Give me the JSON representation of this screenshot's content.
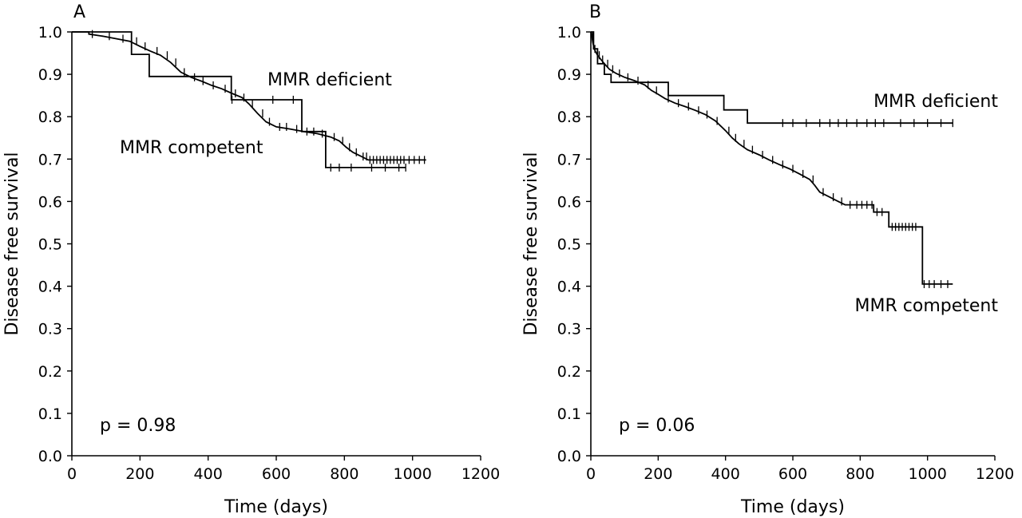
{
  "chart_data": [
    {
      "type": "line",
      "panel_label": "A",
      "xlabel": "Time (days)",
      "ylabel": "Disease free survival",
      "xlim": [
        0,
        1200
      ],
      "ylim": [
        0,
        1.0
      ],
      "xticks": [
        0,
        200,
        400,
        600,
        800,
        1000,
        1200
      ],
      "yticks": [
        0.0,
        0.1,
        0.2,
        0.3,
        0.4,
        0.5,
        0.6,
        0.7,
        0.8,
        0.9,
        1.0
      ],
      "ytick_labels": [
        "0.0",
        "0.1",
        "0.2",
        "0.3",
        "0.4",
        "0.5",
        "0.6",
        "0.7",
        "0.8",
        "0.9",
        "1.0"
      ],
      "grid": false,
      "annotation": "p = 0.98",
      "series": [
        {
          "name": "MMR deficient",
          "step": [
            [
              0,
              1.0
            ],
            [
              175,
              1.0
            ],
            [
              175,
              0.947
            ],
            [
              227,
              0.947
            ],
            [
              227,
              0.895
            ],
            [
              468,
              0.895
            ],
            [
              468,
              0.84
            ],
            [
              675,
              0.84
            ],
            [
              675,
              0.765
            ],
            [
              745,
              0.765
            ],
            [
              745,
              0.68
            ],
            [
              980,
              0.68
            ]
          ],
          "censored_x": [
            470,
            590,
            650,
            760,
            785,
            820,
            880,
            920,
            960,
            980
          ]
        },
        {
          "name": "MMR competent",
          "step": [
            [
              0,
              1.0
            ],
            [
              50,
              1.0
            ],
            [
              50,
              0.995
            ],
            [
              90,
              0.99
            ],
            [
              130,
              0.984
            ],
            [
              170,
              0.978
            ],
            [
              200,
              0.966
            ],
            [
              230,
              0.955
            ],
            [
              260,
              0.945
            ],
            [
              290,
              0.928
            ],
            [
              320,
              0.905
            ],
            [
              350,
              0.893
            ],
            [
              380,
              0.884
            ],
            [
              410,
              0.874
            ],
            [
              440,
              0.866
            ],
            [
              470,
              0.855
            ],
            [
              500,
              0.845
            ],
            [
              520,
              0.83
            ],
            [
              545,
              0.808
            ],
            [
              570,
              0.788
            ],
            [
              600,
              0.776
            ],
            [
              640,
              0.771
            ],
            [
              680,
              0.765
            ],
            [
              720,
              0.76
            ],
            [
              760,
              0.752
            ],
            [
              785,
              0.743
            ],
            [
              805,
              0.728
            ],
            [
              825,
              0.716
            ],
            [
              850,
              0.706
            ],
            [
              870,
              0.698
            ],
            [
              1040,
              0.698
            ]
          ],
          "censored_x": [
            60,
            110,
            150,
            190,
            215,
            250,
            280,
            305,
            330,
            360,
            385,
            415,
            450,
            480,
            505,
            530,
            560,
            580,
            610,
            630,
            660,
            690,
            710,
            735,
            770,
            795,
            815,
            835,
            855,
            865,
            875,
            885,
            895,
            905,
            915,
            925,
            935,
            945,
            955,
            965,
            975,
            990,
            1005,
            1020,
            1035
          ]
        }
      ]
    },
    {
      "type": "line",
      "panel_label": "B",
      "xlabel": "Time (days)",
      "ylabel": "Disease free survival",
      "xlim": [
        0,
        1200
      ],
      "ylim": [
        0,
        1.0
      ],
      "xticks": [
        0,
        200,
        400,
        600,
        800,
        1000,
        1200
      ],
      "yticks": [
        0.0,
        0.1,
        0.2,
        0.3,
        0.4,
        0.5,
        0.6,
        0.7,
        0.8,
        0.9,
        1.0
      ],
      "ytick_labels": [
        "0.0",
        "0.1",
        "0.2",
        "0.3",
        "0.4",
        "0.5",
        "0.6",
        "0.7",
        "0.8",
        "0.9",
        "1.0"
      ],
      "grid": false,
      "annotation": "p = 0.06",
      "series": [
        {
          "name": "MMR deficient",
          "step": [
            [
              0,
              1.0
            ],
            [
              8,
              1.0
            ],
            [
              8,
              0.96
            ],
            [
              20,
              0.96
            ],
            [
              20,
              0.925
            ],
            [
              40,
              0.925
            ],
            [
              40,
              0.9
            ],
            [
              60,
              0.9
            ],
            [
              60,
              0.881
            ],
            [
              230,
              0.881
            ],
            [
              230,
              0.85
            ],
            [
              395,
              0.85
            ],
            [
              395,
              0.816
            ],
            [
              465,
              0.816
            ],
            [
              465,
              0.785
            ],
            [
              1075,
              0.785
            ]
          ],
          "censored_x": [
            570,
            600,
            640,
            680,
            710,
            735,
            760,
            790,
            820,
            845,
            870,
            920,
            960,
            1000,
            1040,
            1075
          ]
        },
        {
          "name": "MMR competent",
          "step": [
            [
              0,
              1.0
            ],
            [
              3,
              0.99
            ],
            [
              6,
              0.975
            ],
            [
              10,
              0.96
            ],
            [
              15,
              0.952
            ],
            [
              20,
              0.945
            ],
            [
              30,
              0.935
            ],
            [
              40,
              0.925
            ],
            [
              55,
              0.912
            ],
            [
              75,
              0.902
            ],
            [
              100,
              0.893
            ],
            [
              130,
              0.885
            ],
            [
              160,
              0.875
            ],
            [
              180,
              0.862
            ],
            [
              200,
              0.853
            ],
            [
              220,
              0.843
            ],
            [
              250,
              0.832
            ],
            [
              280,
              0.824
            ],
            [
              310,
              0.815
            ],
            [
              340,
              0.805
            ],
            [
              370,
              0.79
            ],
            [
              400,
              0.767
            ],
            [
              420,
              0.75
            ],
            [
              440,
              0.736
            ],
            [
              465,
              0.722
            ],
            [
              500,
              0.71
            ],
            [
              530,
              0.698
            ],
            [
              560,
              0.687
            ],
            [
              590,
              0.677
            ],
            [
              620,
              0.665
            ],
            [
              650,
              0.652
            ],
            [
              665,
              0.638
            ],
            [
              680,
              0.622
            ],
            [
              710,
              0.61
            ],
            [
              735,
              0.6
            ],
            [
              755,
              0.592
            ],
            [
              840,
              0.592
            ],
            [
              840,
              0.575
            ],
            [
              885,
              0.575
            ],
            [
              885,
              0.54
            ],
            [
              985,
              0.54
            ],
            [
              985,
              0.405
            ],
            [
              1075,
              0.405
            ]
          ],
          "censored_x": [
            5,
            12,
            25,
            35,
            50,
            65,
            85,
            110,
            140,
            170,
            195,
            230,
            260,
            290,
            320,
            345,
            375,
            410,
            430,
            455,
            480,
            510,
            540,
            570,
            600,
            630,
            660,
            690,
            720,
            745,
            770,
            790,
            805,
            820,
            835,
            850,
            865,
            895,
            905,
            915,
            925,
            935,
            945,
            955,
            965,
            990,
            1005,
            1020,
            1040,
            1060
          ]
        }
      ]
    }
  ]
}
